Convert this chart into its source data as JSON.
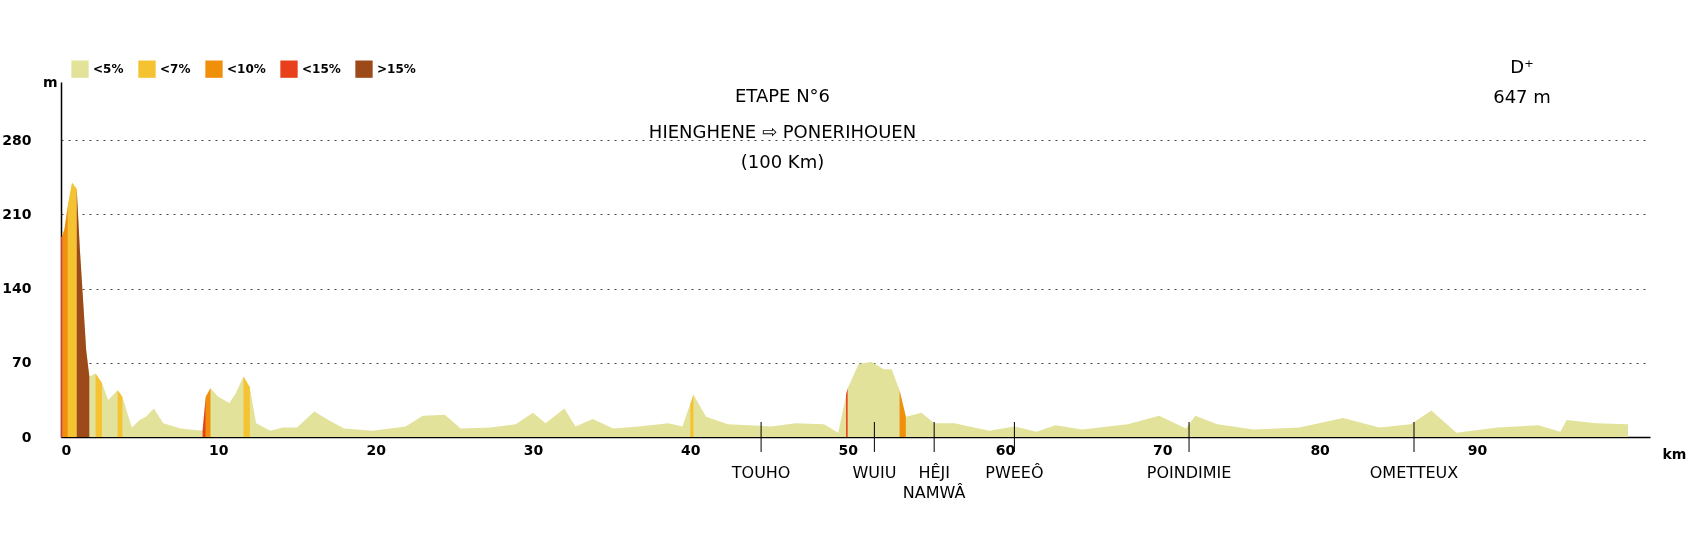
{
  "chart_data": {
    "type": "area",
    "title": "ETAPE N°6",
    "subtitle": "HIENGHENE ⇨ PONERIHOUEN\n(100 Km)",
    "xlabel": "km",
    "ylabel": "m",
    "xlim": [
      0,
      101
    ],
    "xticks": [
      0,
      10,
      20,
      30,
      40,
      50,
      60,
      70,
      80,
      90
    ],
    "ylim": [
      0,
      335
    ],
    "yticks": [
      0,
      70,
      140,
      210,
      280
    ],
    "grid": "y",
    "legend": "top left",
    "series": [
      {
        "name": "<5%",
        "color": "#e3e29b",
        "x": [
          0,
          0.22,
          0.43,
          0.7,
          1.0,
          1.2,
          1.4,
          1.6,
          1.8,
          2.2,
          2.6,
          3.0,
          3.6,
          3.9,
          4.5,
          5.0,
          5.4,
          5.9,
          6.5,
          7.6,
          9.0,
          9.2,
          9.5,
          10.0,
          10.7,
          11.1,
          11.6,
          12.0,
          12.4,
          13.3,
          14.1,
          15.0,
          16.1,
          17.0,
          18.0,
          19.8,
          21.9,
          23.0,
          24.4,
          25.4,
          27.3,
          28.9,
          30.0,
          30.8,
          32.0,
          32.7,
          33.8,
          35.1,
          36.7,
          38.6,
          39.5,
          40.2,
          41.0,
          42.4,
          45.1,
          46.7,
          48.5,
          49.4,
          50.0,
          50.7,
          51.5,
          52.3,
          52.8,
          53.3,
          53.7,
          54.7,
          55.5,
          56.8,
          59.0,
          60.6,
          62.0,
          63.2,
          64.9,
          67.8,
          69.8,
          71.5,
          72.1,
          73.5,
          75.8,
          78.7,
          81.5,
          83.8,
          85.8,
          87.1,
          88.7,
          91.3,
          93.9,
          95.3,
          95.7,
          97.6,
          99.6
        ],
        "values": [
          187,
          196,
          218,
          240,
          234,
          177,
          130,
          82,
          57,
          60,
          51,
          35,
          44,
          38,
          9,
          16,
          19,
          27,
          13,
          8,
          6,
          38,
          46,
          38,
          32,
          41,
          57,
          47,
          13,
          6,
          9,
          9,
          24,
          16,
          8,
          6,
          10,
          20,
          21,
          8,
          9,
          12,
          23,
          13,
          27,
          10,
          17,
          8,
          10,
          13,
          10,
          40,
          19,
          12,
          10,
          13,
          12,
          4,
          46,
          69,
          71,
          64,
          64,
          44,
          19,
          23,
          13,
          13,
          6,
          10,
          5,
          11,
          7,
          12,
          20,
          8,
          20,
          12,
          7,
          9,
          18,
          9,
          12,
          25,
          4,
          9,
          11,
          5,
          16,
          13,
          12
        ]
      },
      {
        "name": "<7%",
        "color": "#f5c231",
        "x": [
          0.43,
          0.7,
          1.0,
          1.5,
          2.2,
          2.6,
          3.2,
          3.6,
          3.9,
          8,
          11.6,
          12.0,
          30,
          40.0,
          40.2
        ],
        "values": [
          218,
          240,
          234,
          null,
          60,
          51,
          null,
          44,
          38,
          null,
          57,
          47,
          null,
          31,
          40
        ]
      },
      {
        "name": "<10%",
        "color": "#f0900a",
        "x": [
          0.1,
          0.22,
          0.43,
          5,
          9.2,
          9.5,
          30,
          53.3,
          53.7
        ],
        "values": [
          191,
          196,
          218,
          null,
          38,
          46,
          null,
          44,
          19
        ]
      },
      {
        "name": "<15%",
        "color": "#e8401a",
        "x": [
          0,
          0.1,
          5,
          9.0,
          9.2,
          30,
          49.9,
          50.0
        ],
        "values": [
          187,
          191,
          null,
          6,
          38,
          null,
          40,
          46
        ]
      },
      {
        "name": ">15%",
        "color": "#9c4a1a",
        "x": [
          1.0,
          1.2,
          1.4,
          1.6,
          1.8
        ],
        "values": [
          234,
          177,
          130,
          82,
          57
        ]
      }
    ],
    "annotations": [
      "D⁺",
      "647 m"
    ],
    "ref_lines": [
      {
        "axis": "x",
        "value": 44.5,
        "label": "TOUHO"
      },
      {
        "axis": "x",
        "value": 51.7,
        "label": "WUIU"
      },
      {
        "axis": "x",
        "value": 55.5,
        "label": "HÊJI NAMWÂ"
      },
      {
        "axis": "x",
        "value": 60.6,
        "label": "PWEEÔ"
      },
      {
        "axis": "x",
        "value": 71.7,
        "label": "POINDIMIE"
      },
      {
        "axis": "x",
        "value": 86.0,
        "label": "OMETTEUX"
      }
    ]
  }
}
